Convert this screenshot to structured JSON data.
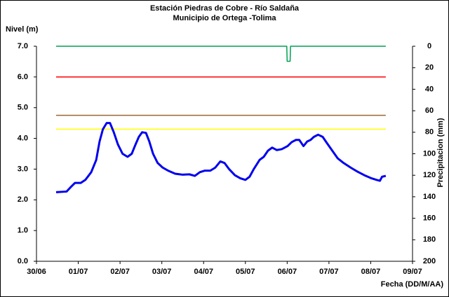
{
  "chart_data": {
    "type": "line",
    "title": "Estación Piedras de Cobre  - Río Saldaña",
    "subtitle": "Municipio de Ortega -Tolima",
    "ylabel": "Nivel (m)",
    "y2label": "Precipitacion (mm)",
    "xlabel": "Fecha (DD/M/AA)",
    "xlim": [
      0,
      9
    ],
    "xticks": [
      {
        "value": 0,
        "label": "30/06"
      },
      {
        "value": 1,
        "label": "01/07"
      },
      {
        "value": 2,
        "label": "02/07"
      },
      {
        "value": 3,
        "label": "03/07"
      },
      {
        "value": 4,
        "label": "04/07"
      },
      {
        "value": 5,
        "label": "05/07"
      },
      {
        "value": 6,
        "label": "06/07"
      },
      {
        "value": 7,
        "label": "07/07"
      },
      {
        "value": 8,
        "label": "08/07"
      },
      {
        "value": 9,
        "label": "09/07"
      }
    ],
    "ylim": [
      0,
      7
    ],
    "yticks": [
      {
        "value": 0,
        "label": "0.0"
      },
      {
        "value": 1,
        "label": "1.0"
      },
      {
        "value": 2,
        "label": "2.0"
      },
      {
        "value": 3,
        "label": "3.0"
      },
      {
        "value": 4,
        "label": "4.0"
      },
      {
        "value": 5,
        "label": "5.0"
      },
      {
        "value": 6,
        "label": "6.0"
      },
      {
        "value": 7,
        "label": "7.0"
      }
    ],
    "y2lim": [
      200,
      0
    ],
    "y2ticks": [
      0,
      20,
      40,
      60,
      80,
      100,
      120,
      140,
      160,
      180,
      200
    ],
    "series": [
      {
        "color": "#ff0000",
        "x": [
          0.47,
          8.36
        ],
        "values": [
          6.0,
          6.0
        ]
      },
      {
        "color": "#996633",
        "x": [
          0.47,
          8.36
        ],
        "values": [
          4.75,
          4.75
        ]
      },
      {
        "color": "#ffff00",
        "x": [
          0.47,
          8.36
        ],
        "values": [
          4.3,
          4.3
        ]
      },
      {
        "color": "#00a050",
        "axis": "y2",
        "x": [
          0.47,
          5.99,
          6.0,
          6.07,
          6.08,
          8.36
        ],
        "values": [
          0,
          0,
          14,
          14,
          0,
          0
        ]
      },
      {
        "color": "#0000ee",
        "x": [
          0.47,
          0.72,
          0.81,
          0.92,
          1.06,
          1.17,
          1.31,
          1.43,
          1.51,
          1.59,
          1.68,
          1.76,
          1.85,
          1.95,
          2.06,
          2.18,
          2.28,
          2.37,
          2.45,
          2.53,
          2.62,
          2.7,
          2.79,
          2.9,
          3.02,
          3.15,
          3.32,
          3.49,
          3.66,
          3.79,
          3.91,
          4.03,
          4.16,
          4.28,
          4.4,
          4.5,
          4.61,
          4.75,
          4.88,
          5.0,
          5.1,
          5.2,
          5.34,
          5.44,
          5.54,
          5.64,
          5.75,
          5.87,
          6.01,
          6.11,
          6.21,
          6.29,
          6.39,
          6.48,
          6.56,
          6.64,
          6.74,
          6.85,
          6.95,
          7.08,
          7.21,
          7.35,
          7.52,
          7.68,
          7.85,
          8.02,
          8.14,
          8.22,
          8.27,
          8.36
        ],
        "values": [
          2.25,
          2.27,
          2.4,
          2.55,
          2.55,
          2.65,
          2.9,
          3.3,
          3.9,
          4.3,
          4.5,
          4.5,
          4.2,
          3.8,
          3.5,
          3.4,
          3.5,
          3.8,
          4.05,
          4.2,
          4.18,
          3.9,
          3.5,
          3.2,
          3.05,
          2.95,
          2.85,
          2.82,
          2.83,
          2.78,
          2.9,
          2.95,
          2.95,
          3.05,
          3.25,
          3.2,
          3.0,
          2.8,
          2.7,
          2.65,
          2.75,
          3.0,
          3.3,
          3.4,
          3.6,
          3.7,
          3.62,
          3.65,
          3.75,
          3.88,
          3.95,
          3.95,
          3.75,
          3.9,
          3.95,
          4.05,
          4.12,
          4.05,
          3.85,
          3.6,
          3.35,
          3.2,
          3.05,
          2.92,
          2.8,
          2.7,
          2.65,
          2.62,
          2.75,
          2.78
        ]
      }
    ]
  }
}
